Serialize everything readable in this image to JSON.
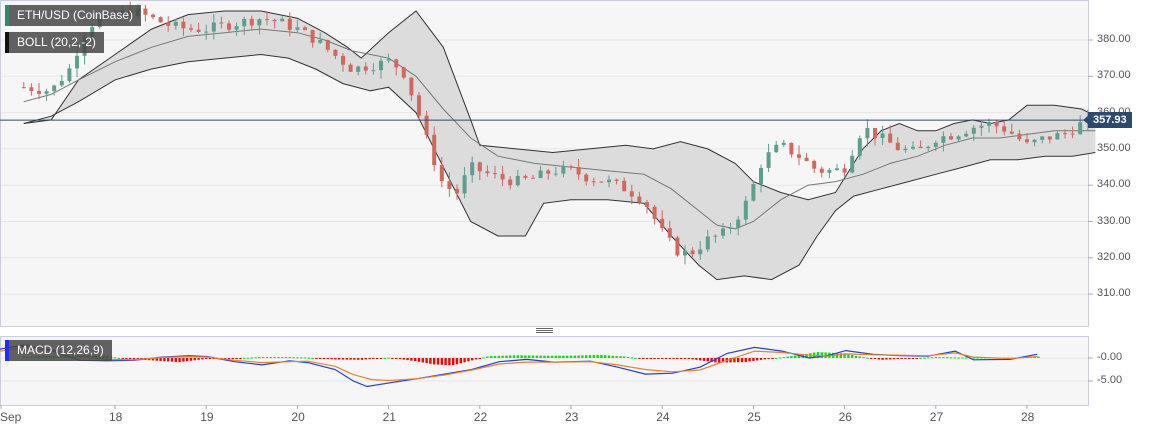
{
  "symbol_legend": {
    "label": "ETH/USD (CoinBase)",
    "accent": "#2e8b6e"
  },
  "boll_legend": {
    "label": "BOLL (20,2,-2)",
    "accent": "#111111"
  },
  "macd_legend": {
    "label": "MACD (12,26,9)",
    "accent": "#1f2bff"
  },
  "last_price": {
    "label": "357.93",
    "value": 357.93,
    "color": "#2b4a6f"
  },
  "colors": {
    "up": "#5e9e8f",
    "down": "#d0685e",
    "band_fill": "#d9d9d9",
    "band_line": "#333333",
    "mid_line": "#777777",
    "macd_line": "#1f3fe0",
    "signal_line": "#f07f2a",
    "hist_up": "#00e600",
    "hist_down": "#ff0000",
    "grid": "#e6e6e6",
    "bg": "#f6f6f6",
    "border": "#c8cde0"
  },
  "chart_data": [
    {
      "type": "candlestick",
      "title": "ETH/USD (CoinBase)",
      "indicator": "BOLL (20,2,-2)",
      "xlabel": "",
      "ylabel": "",
      "x_ticks": [
        "Sep",
        "18",
        "19",
        "20",
        "21",
        "22",
        "23",
        "24",
        "25",
        "26",
        "27",
        "28"
      ],
      "y_ticks": [
        "380.00",
        "370.00",
        "360.00",
        "350.00",
        "340.00",
        "330.00",
        "320.00",
        "310.00"
      ],
      "ylim": [
        301,
        390
      ],
      "grid": true,
      "last_price": 357.93,
      "close_path": [
        [
          0,
          367
        ],
        [
          0.3,
          366
        ],
        [
          0.5,
          372
        ],
        [
          0.7,
          384
        ],
        [
          1.0,
          387
        ],
        [
          1.2,
          388
        ],
        [
          1.4,
          386
        ],
        [
          1.6,
          384
        ],
        [
          1.8,
          383
        ],
        [
          2.0,
          383
        ],
        [
          2.2,
          384
        ],
        [
          2.4,
          385
        ],
        [
          2.6,
          386
        ],
        [
          2.8,
          385
        ],
        [
          3.0,
          383
        ],
        [
          3.2,
          380
        ],
        [
          3.4,
          376
        ],
        [
          3.6,
          372
        ],
        [
          3.8,
          373
        ],
        [
          4.0,
          374
        ],
        [
          4.15,
          372
        ],
        [
          4.3,
          362
        ],
        [
          4.45,
          350
        ],
        [
          4.6,
          340
        ],
        [
          4.75,
          338
        ],
        [
          4.9,
          345
        ],
        [
          5.0,
          344
        ],
        [
          5.2,
          342
        ],
        [
          5.4,
          341
        ],
        [
          5.6,
          342
        ],
        [
          5.8,
          344
        ],
        [
          6.0,
          344
        ],
        [
          6.2,
          342
        ],
        [
          6.4,
          341
        ],
        [
          6.6,
          339
        ],
        [
          6.8,
          336
        ],
        [
          7.0,
          327
        ],
        [
          7.15,
          322
        ],
        [
          7.3,
          321
        ],
        [
          7.5,
          325
        ],
        [
          7.7,
          327
        ],
        [
          7.9,
          334
        ],
        [
          8.0,
          340
        ],
        [
          8.1,
          347
        ],
        [
          8.3,
          351
        ],
        [
          8.5,
          348
        ],
        [
          8.7,
          344
        ],
        [
          8.9,
          344
        ],
        [
          9.0,
          345
        ],
        [
          9.2,
          356
        ],
        [
          9.4,
          353
        ],
        [
          9.6,
          350
        ],
        [
          9.8,
          349
        ],
        [
          10.0,
          353
        ],
        [
          10.2,
          354
        ],
        [
          10.4,
          356
        ],
        [
          10.6,
          357
        ],
        [
          10.8,
          355
        ],
        [
          11.0,
          351
        ],
        [
          11.2,
          353
        ],
        [
          11.4,
          354
        ],
        [
          11.6,
          357
        ],
        [
          11.75,
          358
        ]
      ],
      "boll_upper": [
        [
          0,
          357
        ],
        [
          0.3,
          358
        ],
        [
          0.6,
          369
        ],
        [
          1.0,
          376
        ],
        [
          1.4,
          383
        ],
        [
          1.8,
          387
        ],
        [
          2.2,
          388
        ],
        [
          2.6,
          388
        ],
        [
          3.0,
          386
        ],
        [
          3.3,
          382
        ],
        [
          3.55,
          378
        ],
        [
          3.7,
          375
        ],
        [
          4.0,
          382
        ],
        [
          4.3,
          388
        ],
        [
          4.6,
          378
        ],
        [
          4.9,
          358
        ],
        [
          5.0,
          351
        ],
        [
          5.4,
          350
        ],
        [
          5.8,
          349
        ],
        [
          6.2,
          350
        ],
        [
          6.6,
          351
        ],
        [
          6.9,
          350
        ],
        [
          7.2,
          352
        ],
        [
          7.5,
          350
        ],
        [
          7.8,
          346
        ],
        [
          8.0,
          341
        ],
        [
          8.3,
          338
        ],
        [
          8.6,
          336
        ],
        [
          8.9,
          338
        ],
        [
          9.2,
          350
        ],
        [
          9.4,
          355
        ],
        [
          9.6,
          357
        ],
        [
          9.8,
          355
        ],
        [
          10.0,
          355
        ],
        [
          10.2,
          357
        ],
        [
          10.4,
          358
        ],
        [
          10.6,
          357
        ],
        [
          10.8,
          358
        ],
        [
          11.0,
          362
        ],
        [
          11.3,
          362
        ],
        [
          11.6,
          361
        ],
        [
          11.75,
          359
        ]
      ],
      "boll_middle": [
        [
          0,
          363
        ],
        [
          0.3,
          365
        ],
        [
          0.6,
          369
        ],
        [
          1.0,
          374
        ],
        [
          1.4,
          378
        ],
        [
          1.8,
          381
        ],
        [
          2.2,
          382
        ],
        [
          2.6,
          383
        ],
        [
          3.0,
          382
        ],
        [
          3.3,
          380
        ],
        [
          3.6,
          377
        ],
        [
          4.0,
          375
        ],
        [
          4.3,
          370
        ],
        [
          4.6,
          361
        ],
        [
          4.9,
          353
        ],
        [
          5.2,
          348
        ],
        [
          5.6,
          346
        ],
        [
          6.0,
          345
        ],
        [
          6.4,
          344
        ],
        [
          6.8,
          343
        ],
        [
          7.1,
          339
        ],
        [
          7.4,
          333
        ],
        [
          7.6,
          329
        ],
        [
          7.8,
          328
        ],
        [
          8.0,
          330
        ],
        [
          8.3,
          336
        ],
        [
          8.6,
          340
        ],
        [
          8.9,
          341
        ],
        [
          9.2,
          343
        ],
        [
          9.5,
          346
        ],
        [
          9.8,
          348
        ],
        [
          10.1,
          351
        ],
        [
          10.4,
          353
        ],
        [
          10.7,
          353
        ],
        [
          11.0,
          354
        ],
        [
          11.3,
          355
        ],
        [
          11.75,
          355
        ]
      ],
      "boll_lower": [
        [
          0,
          357
        ],
        [
          0.3,
          359
        ],
        [
          0.6,
          363
        ],
        [
          1.0,
          369
        ],
        [
          1.4,
          372
        ],
        [
          1.8,
          374
        ],
        [
          2.2,
          375
        ],
        [
          2.6,
          376
        ],
        [
          2.9,
          375
        ],
        [
          3.2,
          372
        ],
        [
          3.5,
          368
        ],
        [
          3.8,
          366
        ],
        [
          4.0,
          367
        ],
        [
          4.3,
          360
        ],
        [
          4.6,
          345
        ],
        [
          4.9,
          330
        ],
        [
          5.2,
          326
        ],
        [
          5.5,
          326
        ],
        [
          5.7,
          335
        ],
        [
          6.0,
          336
        ],
        [
          6.4,
          336
        ],
        [
          6.8,
          335
        ],
        [
          7.1,
          326
        ],
        [
          7.4,
          318
        ],
        [
          7.6,
          314
        ],
        [
          7.9,
          315
        ],
        [
          8.2,
          314
        ],
        [
          8.5,
          318
        ],
        [
          8.7,
          326
        ],
        [
          8.9,
          333
        ],
        [
          9.1,
          337
        ],
        [
          9.4,
          339
        ],
        [
          9.7,
          341
        ],
        [
          10.0,
          343
        ],
        [
          10.3,
          345
        ],
        [
          10.6,
          347
        ],
        [
          10.9,
          347
        ],
        [
          11.2,
          348
        ],
        [
          11.5,
          348
        ],
        [
          11.75,
          349
        ]
      ]
    },
    {
      "type": "line",
      "title": "MACD (12,26,9)",
      "y_ticks": [
        "-0.00",
        "-5.00"
      ],
      "series": [
        {
          "name": "MACD",
          "color": "#1f3fe0",
          "points": [
            [
              0,
              0
            ],
            [
              0.5,
              1.2
            ],
            [
              0.9,
              2.5
            ],
            [
              1.0,
              2.8
            ],
            [
              1.3,
              1.5
            ],
            [
              1.6,
              -0.5
            ],
            [
              1.9,
              -0.6
            ],
            [
              2.2,
              -0.5
            ],
            [
              2.5,
              0.2
            ],
            [
              2.8,
              0.5
            ],
            [
              3.0,
              0.3
            ],
            [
              3.3,
              -0.8
            ],
            [
              3.6,
              -1.5
            ],
            [
              3.9,
              -0.6
            ],
            [
              4.1,
              -1.0
            ],
            [
              4.4,
              -2.5
            ],
            [
              4.6,
              -5.0
            ],
            [
              4.75,
              -6.2
            ],
            [
              5.0,
              -5.4
            ],
            [
              5.3,
              -4.5
            ],
            [
              5.6,
              -3.5
            ],
            [
              5.9,
              -2.5
            ],
            [
              6.2,
              -0.8
            ],
            [
              6.5,
              -0.3
            ],
            [
              6.8,
              -0.9
            ],
            [
              7.2,
              -0.7
            ],
            [
              7.5,
              -2.0
            ],
            [
              7.8,
              -3.5
            ],
            [
              8.1,
              -3.3
            ],
            [
              8.4,
              -2.0
            ],
            [
              8.7,
              1.0
            ],
            [
              9.0,
              2.3
            ],
            [
              9.3,
              1.5
            ],
            [
              9.6,
              0.0
            ],
            [
              9.8,
              0.5
            ],
            [
              10.0,
              1.6
            ],
            [
              10.3,
              0.8
            ],
            [
              10.6,
              0.5
            ],
            [
              10.9,
              0.4
            ],
            [
              11.2,
              1.5
            ],
            [
              11.4,
              -0.4
            ],
            [
              11.8,
              -0.3
            ],
            [
              12.1,
              0.8
            ]
          ]
        },
        {
          "name": "Signal",
          "color": "#f07f2a",
          "points": [
            [
              0,
              0
            ],
            [
              0.5,
              0.8
            ],
            [
              0.9,
              2.0
            ],
            [
              1.0,
              2.6
            ],
            [
              1.3,
              1.8
            ],
            [
              1.6,
              0.4
            ],
            [
              1.9,
              -0.3
            ],
            [
              2.2,
              -0.4
            ],
            [
              2.5,
              0.1
            ],
            [
              2.8,
              0.3
            ],
            [
              3.0,
              0.2
            ],
            [
              3.3,
              -0.5
            ],
            [
              3.6,
              -1.0
            ],
            [
              3.9,
              -0.8
            ],
            [
              4.1,
              -0.7
            ],
            [
              4.4,
              -1.8
            ],
            [
              4.6,
              -3.6
            ],
            [
              4.8,
              -4.7
            ],
            [
              5.0,
              -4.9
            ],
            [
              5.3,
              -4.5
            ],
            [
              5.6,
              -3.7
            ],
            [
              5.9,
              -2.6
            ],
            [
              6.2,
              -1.3
            ],
            [
              6.5,
              -0.9
            ],
            [
              6.8,
              -0.9
            ],
            [
              7.2,
              -0.8
            ],
            [
              7.5,
              -1.5
            ],
            [
              7.8,
              -2.5
            ],
            [
              8.1,
              -3.0
            ],
            [
              8.4,
              -2.6
            ],
            [
              8.7,
              -0.5
            ],
            [
              9.0,
              1.5
            ],
            [
              9.3,
              1.2
            ],
            [
              9.6,
              0.6
            ],
            [
              9.8,
              0.4
            ],
            [
              10.0,
              0.9
            ],
            [
              10.3,
              0.7
            ],
            [
              10.6,
              0.6
            ],
            [
              10.9,
              0.5
            ],
            [
              11.2,
              1.1
            ],
            [
              11.4,
              0.2
            ],
            [
              11.8,
              -0.1
            ],
            [
              12.1,
              0.3
            ]
          ]
        }
      ],
      "histogram": [
        [
          0.2,
          0.4
        ],
        [
          0.6,
          0.6
        ],
        [
          0.9,
          0.5
        ],
        [
          1.1,
          -0.2
        ],
        [
          1.4,
          -0.5
        ],
        [
          1.7,
          -0.9
        ],
        [
          2.0,
          -0.2
        ],
        [
          2.3,
          -0.1
        ],
        [
          2.6,
          0.2
        ],
        [
          2.9,
          0.2
        ],
        [
          3.1,
          0.1
        ],
        [
          3.4,
          -0.3
        ],
        [
          3.7,
          -0.4
        ],
        [
          4.0,
          0.1
        ],
        [
          4.3,
          -0.7
        ],
        [
          4.5,
          -1.4
        ],
        [
          4.7,
          -1.6
        ],
        [
          4.9,
          -0.6
        ],
        [
          5.1,
          0.4
        ],
        [
          5.4,
          0.6
        ],
        [
          5.7,
          0.5
        ],
        [
          6.0,
          0.5
        ],
        [
          6.3,
          0.7
        ],
        [
          6.6,
          0.3
        ],
        [
          6.8,
          -0.2
        ],
        [
          7.0,
          -0.1
        ],
        [
          7.3,
          -0.2
        ],
        [
          7.6,
          -1.0
        ],
        [
          7.9,
          -0.9
        ],
        [
          8.2,
          -0.1
        ],
        [
          8.5,
          0.6
        ],
        [
          8.7,
          1.3
        ],
        [
          9.0,
          1.0
        ],
        [
          9.2,
          0.2
        ],
        [
          9.4,
          -0.4
        ],
        [
          9.7,
          -0.1
        ],
        [
          10.0,
          0.2
        ],
        [
          10.3,
          0.1
        ],
        [
          10.6,
          0.1
        ],
        [
          10.9,
          0.1
        ],
        [
          11.2,
          0.4
        ],
        [
          11.4,
          -0.6
        ],
        [
          11.7,
          -0.3
        ],
        [
          11.9,
          0.1
        ],
        [
          12.1,
          0.4
        ]
      ]
    }
  ]
}
